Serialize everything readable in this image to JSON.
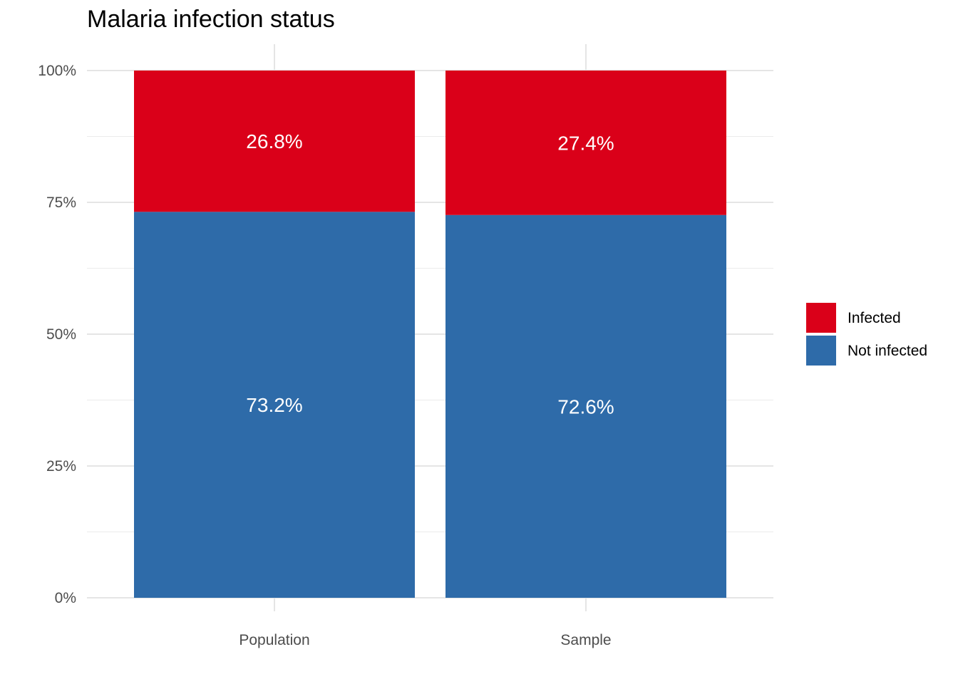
{
  "chart_data": {
    "type": "bar",
    "stacked": true,
    "title": "Malaria infection status",
    "xlabel": "",
    "ylabel": "",
    "categories": [
      "Population",
      "Sample"
    ],
    "series": [
      {
        "name": "Not infected",
        "values": [
          73.2,
          72.6
        ],
        "labels": [
          "73.2%",
          "72.6%"
        ],
        "color": "#2E6BA9"
      },
      {
        "name": "Infected",
        "values": [
          26.8,
          27.4
        ],
        "labels": [
          "26.8%",
          "27.4%"
        ],
        "color": "#DA0019"
      }
    ],
    "legend_order": [
      "Infected",
      "Not infected"
    ],
    "ylim": [
      0,
      100
    ],
    "yticks": [
      0,
      25,
      50,
      75,
      100
    ],
    "ytick_labels": [
      "0%",
      "25%",
      "50%",
      "75%",
      "100%"
    ],
    "grid": true,
    "legend_position": "right"
  }
}
